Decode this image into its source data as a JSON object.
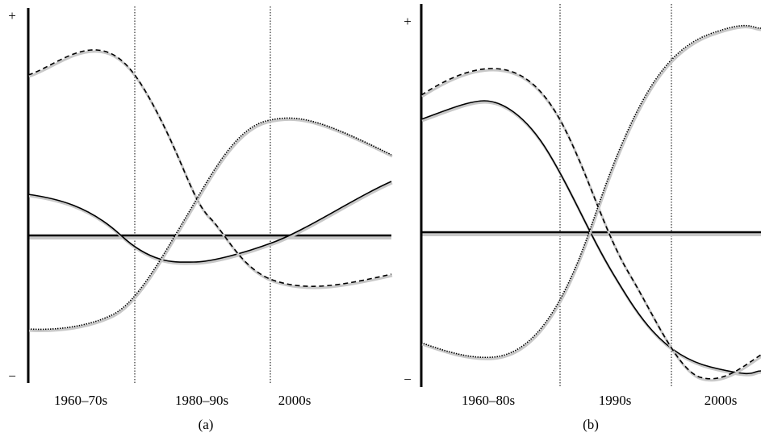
{
  "panel_a": {
    "plus": "+",
    "minus": "−",
    "periods": [
      "1960–70s",
      "1980–90s",
      "2000s"
    ],
    "caption": "(a)"
  },
  "panel_b": {
    "plus": "+",
    "minus": "−",
    "periods": [
      "1960–80s",
      "1990s",
      "2000s"
    ],
    "caption": "(b)"
  }
}
